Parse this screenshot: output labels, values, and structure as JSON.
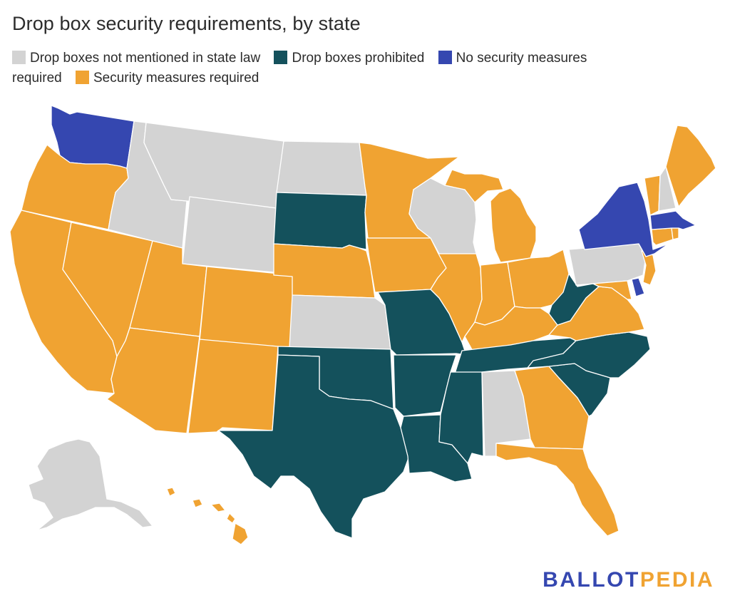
{
  "title": "Drop box security requirements, by state",
  "legend": [
    {
      "label": "Drop boxes not mentioned in state law",
      "color": "#d3d3d3"
    },
    {
      "label": "Drop boxes prohibited",
      "color": "#14515c"
    },
    {
      "label": "No security measures required",
      "color": "#3547b0"
    },
    {
      "label": "Security measures required",
      "color": "#f0a332"
    }
  ],
  "logo": {
    "part1": "BALLOT",
    "part2": "PEDIA",
    "color1": "#3547b0",
    "color2": "#f0a332"
  },
  "states": {
    "WA": "No security measures required",
    "OR": "Security measures required",
    "CA": "Security measures required",
    "NV": "Security measures required",
    "ID": "Drop boxes not mentioned in state law",
    "MT": "Drop boxes not mentioned in state law",
    "WY": "Drop boxes not mentioned in state law",
    "UT": "Security measures required",
    "AZ": "Security measures required",
    "CO": "Security measures required",
    "NM": "Security measures required",
    "ND": "Drop boxes not mentioned in state law",
    "SD": "Drop boxes prohibited",
    "NE": "Security measures required",
    "KS": "Drop boxes not mentioned in state law",
    "OK": "Drop boxes prohibited",
    "TX": "Drop boxes prohibited",
    "MN": "Security measures required",
    "IA": "Security measures required",
    "MO": "Drop boxes prohibited",
    "AR": "Drop boxes prohibited",
    "LA": "Drop boxes prohibited",
    "WI": "Drop boxes not mentioned in state law",
    "IL": "Security measures required",
    "MI": "Security measures required",
    "IN": "Security measures required",
    "OH": "Security measures required",
    "KY": "Security measures required",
    "TN": "Drop boxes prohibited",
    "MS": "Drop boxes prohibited",
    "AL": "Drop boxes not mentioned in state law",
    "GA": "Security measures required",
    "FL": "Security measures required",
    "SC": "Drop boxes prohibited",
    "NC": "Drop boxes prohibited",
    "VA": "Security measures required",
    "WV": "Drop boxes prohibited",
    "MD": "Security measures required",
    "DE": "No security measures required",
    "PA": "Drop boxes not mentioned in state law",
    "NJ": "Security measures required",
    "NY": "No security measures required",
    "CT": "Security measures required",
    "RI": "Security measures required",
    "MA": "No security measures required",
    "VT": "Security measures required",
    "NH": "Drop boxes not mentioned in state law",
    "ME": "Security measures required",
    "AK": "Drop boxes not mentioned in state law",
    "HI": "Security measures required"
  }
}
